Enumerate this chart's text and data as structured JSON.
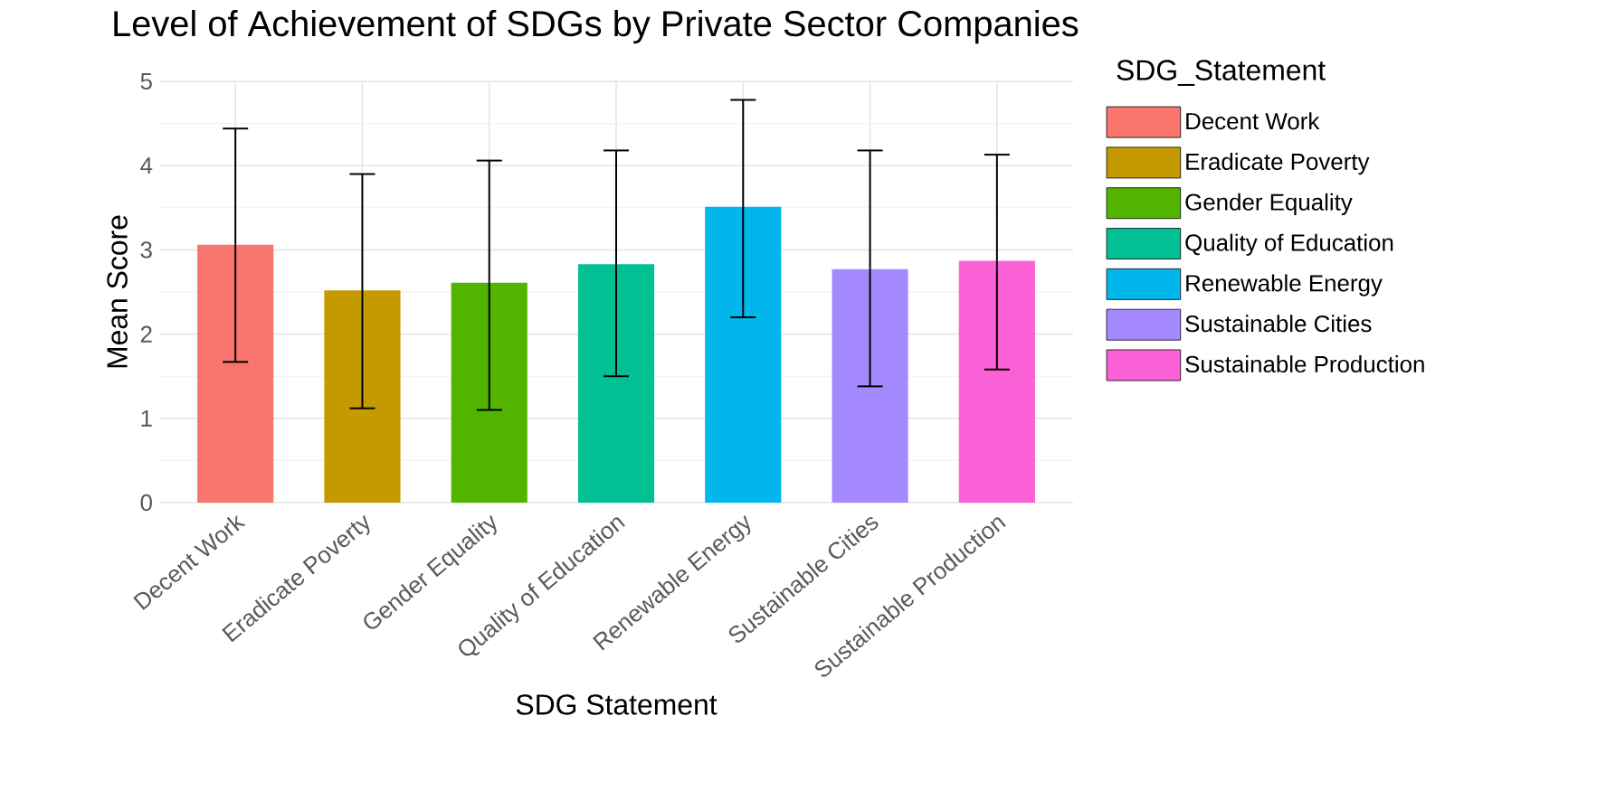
{
  "chart_data": {
    "type": "bar",
    "title": "Level of Achievement of SDGs by Private Sector Companies",
    "xlabel": "SDG Statement",
    "ylabel": "Mean Score",
    "legend_title": "SDG_Statement",
    "categories": [
      "Decent Work",
      "Eradicate Poverty",
      "Gender Equality",
      "Quality of Education",
      "Renewable Energy",
      "Sustainable Cities",
      "Sustainable Production"
    ],
    "series": [
      {
        "name": "Decent Work",
        "color": "#f8766d",
        "values": [
          3.06,
          null,
          null,
          null,
          null,
          null,
          null
        ],
        "errors": [
          [
            1.67,
            4.44
          ],
          null,
          null,
          null,
          null,
          null,
          null
        ]
      },
      {
        "name": "Eradicate Poverty",
        "color": "#c49a00",
        "values": [
          null,
          2.52,
          null,
          null,
          null,
          null,
          null
        ],
        "errors": [
          null,
          [
            1.12,
            3.9
          ],
          null,
          null,
          null,
          null,
          null
        ]
      },
      {
        "name": "Gender Equality",
        "color": "#53b400",
        "values": [
          null,
          null,
          2.61,
          null,
          null,
          null,
          null
        ],
        "errors": [
          null,
          null,
          [
            1.1,
            4.06
          ],
          null,
          null,
          null,
          null
        ]
      },
      {
        "name": "Quality of Education",
        "color": "#00c094",
        "values": [
          null,
          null,
          null,
          2.83,
          null,
          null,
          null
        ],
        "errors": [
          null,
          null,
          null,
          [
            1.5,
            4.18
          ],
          null,
          null,
          null
        ]
      },
      {
        "name": "Renewable Energy",
        "color": "#00b6eb",
        "values": [
          null,
          null,
          null,
          null,
          3.51,
          null,
          null
        ],
        "errors": [
          null,
          null,
          null,
          null,
          [
            2.2,
            4.78
          ],
          null,
          null
        ]
      },
      {
        "name": "Sustainable Cities",
        "color": "#a58aff",
        "values": [
          null,
          null,
          null,
          null,
          null,
          2.77,
          null
        ],
        "errors": [
          null,
          null,
          null,
          null,
          null,
          [
            1.38,
            4.18
          ],
          null
        ]
      },
      {
        "name": "Sustainable Production",
        "color": "#fb61d7",
        "values": [
          null,
          null,
          null,
          null,
          null,
          null,
          2.87
        ],
        "errors": [
          null,
          null,
          null,
          null,
          null,
          null,
          [
            1.58,
            4.13
          ]
        ]
      }
    ],
    "ylim": [
      0,
      5
    ],
    "yticks": [
      0,
      1,
      2,
      3,
      4,
      5
    ],
    "grid": true,
    "legend": "right"
  }
}
